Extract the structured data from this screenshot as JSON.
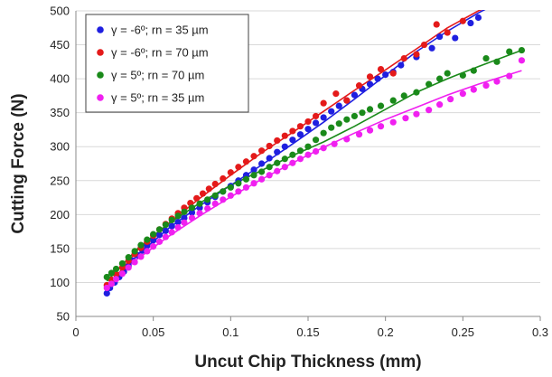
{
  "chart_data": {
    "type": "scatter",
    "title": "",
    "xlabel": "Uncut Chip Thickness (mm)",
    "ylabel": "Cutting Force (N)",
    "xlim": [
      0,
      0.3
    ],
    "ylim": [
      50,
      500
    ],
    "xticks": [
      0,
      0.05,
      0.1,
      0.15,
      0.2,
      0.25,
      0.3
    ],
    "xtick_labels": [
      "0",
      "0.05",
      "0.1",
      "0.15",
      "0.2",
      "0.25",
      "0.3"
    ],
    "yticks": [
      50,
      100,
      150,
      200,
      250,
      300,
      350,
      400,
      450,
      500
    ],
    "ytick_labels": [
      "50",
      "100",
      "150",
      "200",
      "250",
      "300",
      "350",
      "400",
      "450",
      "500"
    ],
    "grid": "horizontal",
    "legend_position": "top-left",
    "series": [
      {
        "name": "γ = -6º; rn = 35 µm",
        "color": "#1f1fe0",
        "points": [
          [
            0.02,
            84
          ],
          [
            0.022,
            92
          ],
          [
            0.025,
            100
          ],
          [
            0.028,
            108
          ],
          [
            0.031,
            116
          ],
          [
            0.034,
            124
          ],
          [
            0.037,
            132
          ],
          [
            0.04,
            140
          ],
          [
            0.043,
            147
          ],
          [
            0.046,
            154
          ],
          [
            0.05,
            162
          ],
          [
            0.054,
            170
          ],
          [
            0.058,
            176
          ],
          [
            0.062,
            183
          ],
          [
            0.066,
            189
          ],
          [
            0.07,
            195
          ],
          [
            0.075,
            203
          ],
          [
            0.08,
            210
          ],
          [
            0.085,
            218
          ],
          [
            0.09,
            226
          ],
          [
            0.095,
            234
          ],
          [
            0.1,
            242
          ],
          [
            0.105,
            250
          ],
          [
            0.11,
            258
          ],
          [
            0.115,
            266
          ],
          [
            0.12,
            275
          ],
          [
            0.125,
            283
          ],
          [
            0.13,
            292
          ],
          [
            0.135,
            300
          ],
          [
            0.14,
            310
          ],
          [
            0.145,
            318
          ],
          [
            0.15,
            326
          ],
          [
            0.155,
            335
          ],
          [
            0.16,
            343
          ],
          [
            0.165,
            352
          ],
          [
            0.17,
            360
          ],
          [
            0.175,
            368
          ],
          [
            0.18,
            376
          ],
          [
            0.185,
            385
          ],
          [
            0.19,
            392
          ],
          [
            0.195,
            400
          ],
          [
            0.2,
            406
          ],
          [
            0.205,
            410
          ],
          [
            0.21,
            420
          ],
          [
            0.22,
            432
          ],
          [
            0.23,
            445
          ],
          [
            0.235,
            462
          ],
          [
            0.245,
            460
          ],
          [
            0.255,
            482
          ],
          [
            0.26,
            490
          ]
        ],
        "fit": [
          [
            0.02,
            87
          ],
          [
            0.04,
            141
          ],
          [
            0.06,
            180
          ],
          [
            0.08,
            213
          ],
          [
            0.1,
            243
          ],
          [
            0.12,
            273
          ],
          [
            0.14,
            304
          ],
          [
            0.16,
            336
          ],
          [
            0.18,
            370
          ],
          [
            0.2,
            405
          ],
          [
            0.22,
            440
          ],
          [
            0.24,
            470
          ],
          [
            0.26,
            497
          ],
          [
            0.275,
            515
          ]
        ]
      },
      {
        "name": "γ = -6º; rn = 70 µm",
        "color": "#e41a1a",
        "points": [
          [
            0.02,
            96
          ],
          [
            0.023,
            104
          ],
          [
            0.026,
            112
          ],
          [
            0.03,
            122
          ],
          [
            0.034,
            132
          ],
          [
            0.038,
            142
          ],
          [
            0.042,
            151
          ],
          [
            0.046,
            160
          ],
          [
            0.05,
            169
          ],
          [
            0.054,
            178
          ],
          [
            0.058,
            186
          ],
          [
            0.062,
            194
          ],
          [
            0.066,
            202
          ],
          [
            0.07,
            210
          ],
          [
            0.074,
            217
          ],
          [
            0.078,
            224
          ],
          [
            0.082,
            231
          ],
          [
            0.086,
            238
          ],
          [
            0.09,
            245
          ],
          [
            0.095,
            253
          ],
          [
            0.1,
            262
          ],
          [
            0.105,
            270
          ],
          [
            0.11,
            278
          ],
          [
            0.115,
            286
          ],
          [
            0.12,
            294
          ],
          [
            0.125,
            301
          ],
          [
            0.13,
            309
          ],
          [
            0.135,
            316
          ],
          [
            0.14,
            323
          ],
          [
            0.145,
            330
          ],
          [
            0.15,
            337
          ],
          [
            0.155,
            345
          ],
          [
            0.16,
            364
          ],
          [
            0.168,
            378
          ],
          [
            0.175,
            368
          ],
          [
            0.183,
            390
          ],
          [
            0.19,
            403
          ],
          [
            0.197,
            414
          ],
          [
            0.205,
            408
          ],
          [
            0.212,
            430
          ],
          [
            0.22,
            436
          ],
          [
            0.225,
            450
          ],
          [
            0.233,
            480
          ],
          [
            0.24,
            468
          ],
          [
            0.25,
            485
          ]
        ],
        "fit": [
          [
            0.02,
            92
          ],
          [
            0.04,
            148
          ],
          [
            0.06,
            187
          ],
          [
            0.08,
            224
          ],
          [
            0.1,
            258
          ],
          [
            0.12,
            291
          ],
          [
            0.14,
            321
          ],
          [
            0.16,
            352
          ],
          [
            0.18,
            383
          ],
          [
            0.2,
            413
          ],
          [
            0.22,
            444
          ],
          [
            0.24,
            475
          ],
          [
            0.26,
            500
          ],
          [
            0.28,
            520
          ]
        ]
      },
      {
        "name": "γ = 5º; rn = 70 µm",
        "color": "#1a8a1a",
        "points": [
          [
            0.02,
            108
          ],
          [
            0.023,
            114
          ],
          [
            0.026,
            120
          ],
          [
            0.03,
            128
          ],
          [
            0.034,
            137
          ],
          [
            0.038,
            146
          ],
          [
            0.042,
            155
          ],
          [
            0.046,
            163
          ],
          [
            0.05,
            171
          ],
          [
            0.054,
            178
          ],
          [
            0.058,
            185
          ],
          [
            0.062,
            192
          ],
          [
            0.066,
            198
          ],
          [
            0.07,
            204
          ],
          [
            0.075,
            210
          ],
          [
            0.08,
            216
          ],
          [
            0.085,
            222
          ],
          [
            0.09,
            228
          ],
          [
            0.095,
            234
          ],
          [
            0.1,
            240
          ],
          [
            0.105,
            246
          ],
          [
            0.11,
            252
          ],
          [
            0.115,
            258
          ],
          [
            0.12,
            263
          ],
          [
            0.125,
            270
          ],
          [
            0.13,
            276
          ],
          [
            0.135,
            282
          ],
          [
            0.14,
            288
          ],
          [
            0.145,
            294
          ],
          [
            0.15,
            300
          ],
          [
            0.155,
            310
          ],
          [
            0.16,
            320
          ],
          [
            0.165,
            328
          ],
          [
            0.17,
            334
          ],
          [
            0.175,
            340
          ],
          [
            0.18,
            345
          ],
          [
            0.185,
            350
          ],
          [
            0.19,
            355
          ],
          [
            0.197,
            360
          ],
          [
            0.205,
            368
          ],
          [
            0.212,
            375
          ],
          [
            0.22,
            380
          ],
          [
            0.228,
            392
          ],
          [
            0.235,
            400
          ],
          [
            0.24,
            408
          ],
          [
            0.25,
            405
          ],
          [
            0.257,
            412
          ],
          [
            0.265,
            430
          ],
          [
            0.272,
            425
          ],
          [
            0.28,
            440
          ],
          [
            0.288,
            442
          ]
        ],
        "fit": [
          [
            0.02,
            102
          ],
          [
            0.04,
            150
          ],
          [
            0.06,
            187
          ],
          [
            0.08,
            217
          ],
          [
            0.1,
            243
          ],
          [
            0.12,
            265
          ],
          [
            0.14,
            287
          ],
          [
            0.16,
            307
          ],
          [
            0.18,
            330
          ],
          [
            0.2,
            355
          ],
          [
            0.22,
            380
          ],
          [
            0.24,
            400
          ],
          [
            0.26,
            418
          ],
          [
            0.288,
            442
          ]
        ]
      },
      {
        "name": "γ = 5º; rn = 35 µm",
        "color": "#f020f0",
        "points": [
          [
            0.02,
            92
          ],
          [
            0.023,
            98
          ],
          [
            0.026,
            105
          ],
          [
            0.03,
            113
          ],
          [
            0.034,
            122
          ],
          [
            0.038,
            130
          ],
          [
            0.042,
            138
          ],
          [
            0.046,
            146
          ],
          [
            0.05,
            153
          ],
          [
            0.054,
            160
          ],
          [
            0.058,
            167
          ],
          [
            0.062,
            174
          ],
          [
            0.066,
            181
          ],
          [
            0.07,
            188
          ],
          [
            0.075,
            195
          ],
          [
            0.08,
            202
          ],
          [
            0.085,
            209
          ],
          [
            0.09,
            216
          ],
          [
            0.095,
            222
          ],
          [
            0.1,
            228
          ],
          [
            0.105,
            234
          ],
          [
            0.11,
            240
          ],
          [
            0.115,
            246
          ],
          [
            0.12,
            252
          ],
          [
            0.125,
            258
          ],
          [
            0.13,
            264
          ],
          [
            0.135,
            270
          ],
          [
            0.14,
            276
          ],
          [
            0.145,
            282
          ],
          [
            0.15,
            288
          ],
          [
            0.155,
            293
          ],
          [
            0.16,
            298
          ],
          [
            0.167,
            304
          ],
          [
            0.175,
            311
          ],
          [
            0.183,
            318
          ],
          [
            0.19,
            324
          ],
          [
            0.197,
            330
          ],
          [
            0.205,
            336
          ],
          [
            0.213,
            342
          ],
          [
            0.22,
            348
          ],
          [
            0.228,
            354
          ],
          [
            0.235,
            362
          ],
          [
            0.242,
            370
          ],
          [
            0.25,
            378
          ],
          [
            0.257,
            384
          ],
          [
            0.265,
            390
          ],
          [
            0.272,
            396
          ],
          [
            0.28,
            404
          ],
          [
            0.288,
            427
          ]
        ],
        "fit": [
          [
            0.02,
            95
          ],
          [
            0.04,
            135
          ],
          [
            0.06,
            168
          ],
          [
            0.08,
            198
          ],
          [
            0.1,
            226
          ],
          [
            0.12,
            252
          ],
          [
            0.14,
            276
          ],
          [
            0.16,
            299
          ],
          [
            0.18,
            320
          ],
          [
            0.2,
            340
          ],
          [
            0.22,
            358
          ],
          [
            0.24,
            376
          ],
          [
            0.26,
            392
          ],
          [
            0.288,
            412
          ]
        ]
      }
    ]
  }
}
